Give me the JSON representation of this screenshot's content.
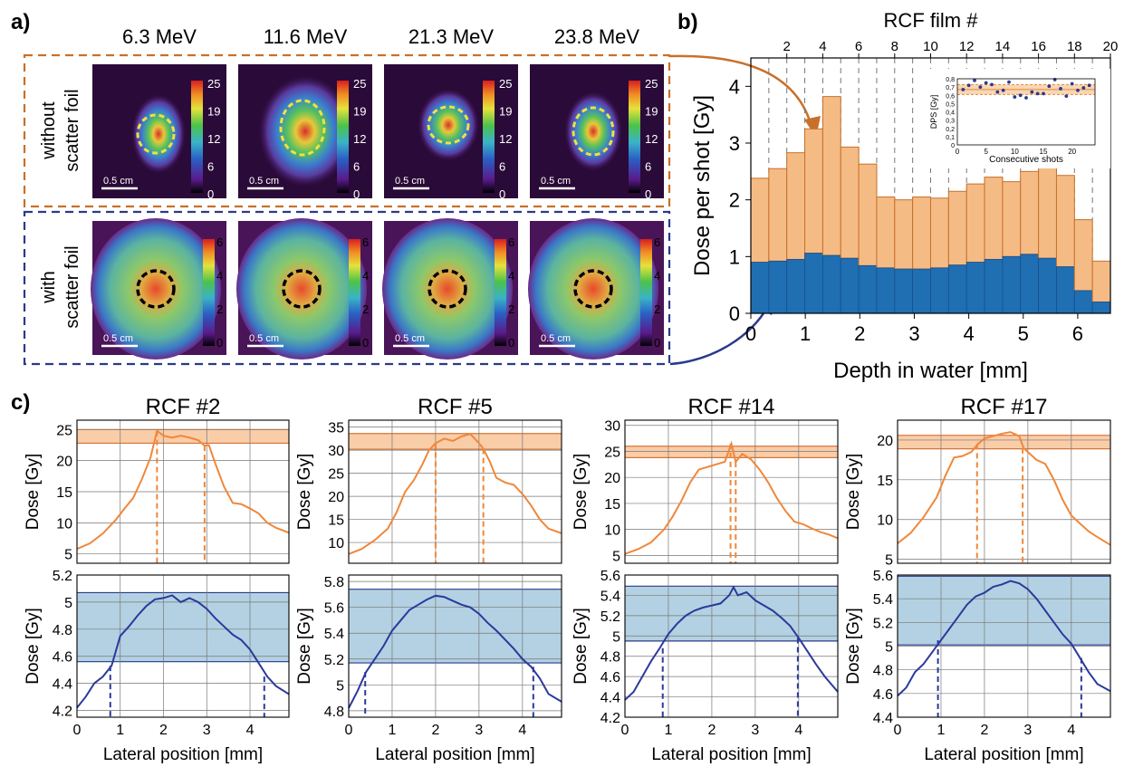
{
  "panel_labels": {
    "a": "a)",
    "b": "b)",
    "c": "c)"
  },
  "panel_a": {
    "energies": [
      "6.3 MeV",
      "11.6 MeV",
      "21.3 MeV",
      "23.8 MeV"
    ],
    "row_labels": {
      "without": [
        "without",
        "scatter foil"
      ],
      "with": [
        "with",
        "scatter foil"
      ]
    },
    "scale_label": "0.5 cm",
    "colorbar_top_ticks": [
      "25",
      "19",
      "12",
      "6",
      "0"
    ],
    "colorbar_bottom_ticks": [
      "6",
      "4",
      "2",
      "0"
    ],
    "colors": {
      "orange_frame": "#c8702a",
      "blue_frame": "#2a3a8c",
      "yellow_circle": "#f2e23a",
      "black_circle": "#000000"
    }
  },
  "chart_data": [
    {
      "id": "b",
      "type": "bar",
      "stacked": true,
      "xlabel": "Depth in water [mm]",
      "ylabel": "Dose per shot [Gy]",
      "top_axis_label": "RCF film #",
      "xlim": [
        0,
        6.6
      ],
      "ylim": [
        0,
        4.5
      ],
      "xticks": [
        0,
        1,
        2,
        3,
        4,
        5,
        6
      ],
      "yticks": [
        0,
        1,
        2,
        3,
        4
      ],
      "top_ticks": [
        "2",
        "4",
        "6",
        "8",
        "10",
        "12",
        "14",
        "16",
        "18",
        "20"
      ],
      "series": [
        {
          "values": [
            0.9,
            0.92,
            0.95,
            1.06,
            1.02,
            0.97,
            0.84,
            0.8,
            0.78,
            0.78,
            0.8,
            0.85,
            0.9,
            0.95,
            1.0,
            1.04,
            0.97,
            0.82,
            0.4,
            0.2
          ],
          "color": "#1f6fb2"
        },
        {
          "values": [
            2.38,
            2.55,
            2.83,
            3.25,
            3.82,
            2.93,
            2.63,
            2.05,
            2.0,
            2.05,
            2.03,
            2.15,
            2.28,
            2.4,
            2.32,
            2.5,
            2.58,
            2.43,
            1.65,
            0.92
          ],
          "color": "#f5bb85"
        }
      ],
      "inset": {
        "xlabel": "Consecutive shots",
        "ylabel": "DPS [Gy]",
        "xlim": [
          0,
          24
        ],
        "ylim": [
          0,
          0.8
        ],
        "xticks": [
          "0",
          "5",
          "10",
          "15",
          "20"
        ],
        "yticks": [
          "0",
          "0,1",
          "0,2",
          "0,3",
          "0,4",
          "0,5",
          "0,6",
          "0,7",
          "0,8"
        ],
        "band": [
          0.61,
          0.73
        ],
        "mean": 0.67,
        "points": [
          [
            1,
            0.67
          ],
          [
            2,
            0.72
          ],
          [
            3,
            0.78
          ],
          [
            4,
            0.7
          ],
          [
            5,
            0.75
          ],
          [
            6,
            0.73
          ],
          [
            7,
            0.64
          ],
          [
            8,
            0.66
          ],
          [
            9,
            0.76
          ],
          [
            10,
            0.58
          ],
          [
            11,
            0.6
          ],
          [
            12,
            0.57
          ],
          [
            13,
            0.64
          ],
          [
            14,
            0.62
          ],
          [
            15,
            0.62
          ],
          [
            16,
            0.71
          ],
          [
            17,
            0.79
          ],
          [
            18,
            0.68
          ],
          [
            19,
            0.59
          ],
          [
            20,
            0.74
          ],
          [
            21,
            0.66
          ],
          [
            22,
            0.69
          ],
          [
            23,
            0.72
          ]
        ]
      }
    },
    {
      "id": "c1",
      "type": "line",
      "title": "RCF #2",
      "xlabel": "Lateral position [mm]",
      "xlim": [
        0,
        4.9
      ],
      "xticks": [
        0,
        1,
        2,
        3,
        4
      ],
      "top": {
        "ylabel": "Dose [Gy]",
        "ylim": [
          3.5,
          26.5
        ],
        "yticks": [
          5,
          10,
          15,
          20,
          25
        ],
        "band": [
          22.8,
          25
        ],
        "x": [
          0,
          0.3,
          0.6,
          0.9,
          1.1,
          1.3,
          1.5,
          1.7,
          1.85,
          2.0,
          2.2,
          2.4,
          2.6,
          2.8,
          2.95,
          3.05,
          3.2,
          3.4,
          3.6,
          3.8,
          4.0,
          4.2,
          4.4,
          4.6,
          4.9
        ],
        "y": [
          5.8,
          6.7,
          8.3,
          10.5,
          12.3,
          14.0,
          17.0,
          20.5,
          24.8,
          24.0,
          23.7,
          24.0,
          23.7,
          23.3,
          22.4,
          22.5,
          19.5,
          15.8,
          13.2,
          13.0,
          12.3,
          11.5,
          10.0,
          9.2,
          8.4
        ],
        "vlines": [
          1.85,
          2.95
        ]
      },
      "bottom": {
        "ylabel": "Dose [Gy]",
        "ylim": [
          4.15,
          5.2
        ],
        "yticks": [
          4.2,
          4.4,
          4.6,
          4.8,
          5.0,
          5.2
        ],
        "band": [
          4.56,
          5.07
        ],
        "x": [
          0,
          0.2,
          0.4,
          0.6,
          0.8,
          1.0,
          1.2,
          1.4,
          1.6,
          1.8,
          2.0,
          2.2,
          2.4,
          2.6,
          2.8,
          3.0,
          3.2,
          3.4,
          3.6,
          3.8,
          4.0,
          4.2,
          4.4,
          4.6,
          4.9
        ],
        "y": [
          4.22,
          4.3,
          4.4,
          4.45,
          4.53,
          4.75,
          4.82,
          4.9,
          4.97,
          5.02,
          5.03,
          5.05,
          5.0,
          5.03,
          5.0,
          4.95,
          4.88,
          4.82,
          4.76,
          4.72,
          4.65,
          4.55,
          4.45,
          4.38,
          4.32
        ],
        "vlines": [
          0.77,
          4.33
        ]
      }
    },
    {
      "id": "c2",
      "type": "line",
      "title": "RCF #5",
      "xlabel": "Lateral position [mm]",
      "xlim": [
        0,
        4.9
      ],
      "xticks": [
        0,
        1,
        2,
        3,
        4
      ],
      "top": {
        "ylabel": "Dose [Gy]",
        "ylim": [
          5.5,
          36.5
        ],
        "yticks": [
          10,
          15,
          20,
          25,
          30,
          35
        ],
        "band": [
          30.2,
          33.6
        ],
        "x": [
          0,
          0.3,
          0.6,
          0.9,
          1.1,
          1.3,
          1.5,
          1.7,
          1.85,
          2.0,
          2.2,
          2.4,
          2.6,
          2.8,
          3.0,
          3.1,
          3.25,
          3.4,
          3.6,
          3.8,
          4.0,
          4.2,
          4.4,
          4.6,
          4.9
        ],
        "y": [
          7.5,
          8.6,
          10.5,
          13.0,
          16.5,
          21.0,
          23.5,
          27.0,
          30.0,
          31.5,
          32.5,
          32.0,
          33.0,
          33.5,
          31.5,
          30.3,
          27.5,
          24.0,
          23.0,
          22.5,
          20.5,
          18.0,
          15.0,
          13.0,
          12.0
        ],
        "vlines": [
          2.0,
          3.1
        ]
      },
      "bottom": {
        "ylabel": "Dose [Gy]",
        "ylim": [
          4.75,
          5.85
        ],
        "yticks": [
          4.8,
          5.0,
          5.2,
          5.4,
          5.6,
          5.8
        ],
        "band": [
          5.17,
          5.74
        ],
        "x": [
          0,
          0.2,
          0.4,
          0.6,
          0.8,
          1.0,
          1.2,
          1.4,
          1.6,
          1.8,
          2.0,
          2.2,
          2.4,
          2.6,
          2.8,
          3.0,
          3.2,
          3.4,
          3.6,
          3.8,
          4.0,
          4.2,
          4.4,
          4.6,
          4.9
        ],
        "y": [
          4.82,
          4.95,
          5.1,
          5.2,
          5.3,
          5.42,
          5.5,
          5.58,
          5.62,
          5.66,
          5.69,
          5.68,
          5.65,
          5.62,
          5.6,
          5.55,
          5.48,
          5.42,
          5.35,
          5.28,
          5.2,
          5.14,
          5.05,
          4.93,
          4.87
        ],
        "vlines": [
          0.38,
          4.25
        ]
      }
    },
    {
      "id": "c3",
      "type": "line",
      "title": "RCF #14",
      "xlabel": "Lateral position [mm]",
      "xlim": [
        0,
        4.9
      ],
      "xticks": [
        0,
        1,
        2,
        3,
        4
      ],
      "top": {
        "ylabel": "Dose [Gy]",
        "ylim": [
          3.5,
          31
        ],
        "yticks": [
          5,
          10,
          15,
          20,
          25,
          30
        ],
        "band": [
          23.8,
          26.0
        ],
        "x": [
          0,
          0.3,
          0.6,
          0.9,
          1.1,
          1.3,
          1.5,
          1.7,
          1.9,
          2.1,
          2.3,
          2.45,
          2.55,
          2.7,
          2.9,
          3.1,
          3.3,
          3.5,
          3.7,
          3.9,
          4.1,
          4.3,
          4.5,
          4.7,
          4.9
        ],
        "y": [
          5.3,
          6.2,
          7.5,
          10.0,
          12.5,
          15.5,
          19.0,
          21.5,
          22.0,
          22.5,
          23.0,
          26.5,
          23.0,
          24.5,
          23.5,
          21.5,
          19.0,
          16.0,
          13.5,
          11.5,
          11.0,
          10.2,
          9.5,
          9.0,
          8.3
        ],
        "vlines": [
          2.43,
          2.55
        ]
      },
      "bottom": {
        "ylabel": "Dose [Gy]",
        "ylim": [
          4.2,
          5.6
        ],
        "yticks": [
          4.2,
          4.4,
          4.6,
          4.8,
          5.0,
          5.2,
          5.4,
          5.6
        ],
        "band": [
          4.95,
          5.49
        ],
        "x": [
          0,
          0.2,
          0.4,
          0.6,
          0.8,
          1.0,
          1.2,
          1.4,
          1.6,
          1.8,
          2.0,
          2.2,
          2.4,
          2.5,
          2.6,
          2.8,
          3.0,
          3.2,
          3.4,
          3.6,
          3.8,
          4.0,
          4.2,
          4.4,
          4.6,
          4.9
        ],
        "y": [
          4.37,
          4.45,
          4.6,
          4.75,
          4.88,
          5.02,
          5.12,
          5.2,
          5.25,
          5.28,
          5.3,
          5.32,
          5.4,
          5.48,
          5.4,
          5.43,
          5.35,
          5.3,
          5.25,
          5.18,
          5.1,
          4.98,
          4.85,
          4.72,
          4.6,
          4.45
        ],
        "vlines": [
          0.87,
          3.98
        ]
      }
    },
    {
      "id": "c4",
      "type": "line",
      "title": "RCF #17",
      "xlabel": "Lateral position [mm]",
      "xlim": [
        0,
        4.9
      ],
      "xticks": [
        0,
        1,
        2,
        3,
        4
      ],
      "top": {
        "ylabel": "Dose [Gy]",
        "ylim": [
          4.5,
          22.5
        ],
        "yticks": [
          5,
          10,
          15,
          20
        ],
        "band": [
          18.9,
          20.6
        ],
        "x": [
          0,
          0.3,
          0.6,
          0.9,
          1.1,
          1.3,
          1.5,
          1.7,
          1.85,
          2.0,
          2.2,
          2.4,
          2.6,
          2.8,
          2.9,
          3.0,
          3.2,
          3.4,
          3.6,
          3.8,
          4.0,
          4.2,
          4.4,
          4.6,
          4.9
        ],
        "y": [
          7.0,
          8.3,
          10.3,
          12.8,
          15.5,
          17.8,
          18.0,
          18.5,
          19.5,
          20.2,
          20.5,
          20.8,
          21.0,
          20.5,
          19.0,
          18.5,
          17.5,
          17.0,
          15.0,
          12.5,
          10.5,
          9.5,
          8.5,
          7.8,
          6.8
        ],
        "vlines": [
          1.83,
          2.88
        ]
      },
      "bottom": {
        "ylabel": "Dose [Gy]",
        "ylim": [
          4.4,
          5.6
        ],
        "yticks": [
          4.4,
          4.6,
          4.8,
          5.0,
          5.2,
          5.4,
          5.6
        ],
        "band": [
          5.01,
          5.59
        ],
        "x": [
          0,
          0.2,
          0.4,
          0.6,
          0.8,
          1.0,
          1.2,
          1.4,
          1.6,
          1.8,
          2.0,
          2.2,
          2.4,
          2.6,
          2.8,
          3.0,
          3.2,
          3.4,
          3.6,
          3.8,
          4.0,
          4.2,
          4.4,
          4.6,
          4.9
        ],
        "y": [
          4.58,
          4.65,
          4.78,
          4.85,
          4.95,
          5.05,
          5.15,
          5.25,
          5.35,
          5.42,
          5.45,
          5.5,
          5.52,
          5.55,
          5.53,
          5.48,
          5.4,
          5.3,
          5.2,
          5.1,
          5.02,
          4.9,
          4.78,
          4.68,
          4.62
        ],
        "vlines": [
          0.93,
          4.23
        ]
      }
    }
  ]
}
